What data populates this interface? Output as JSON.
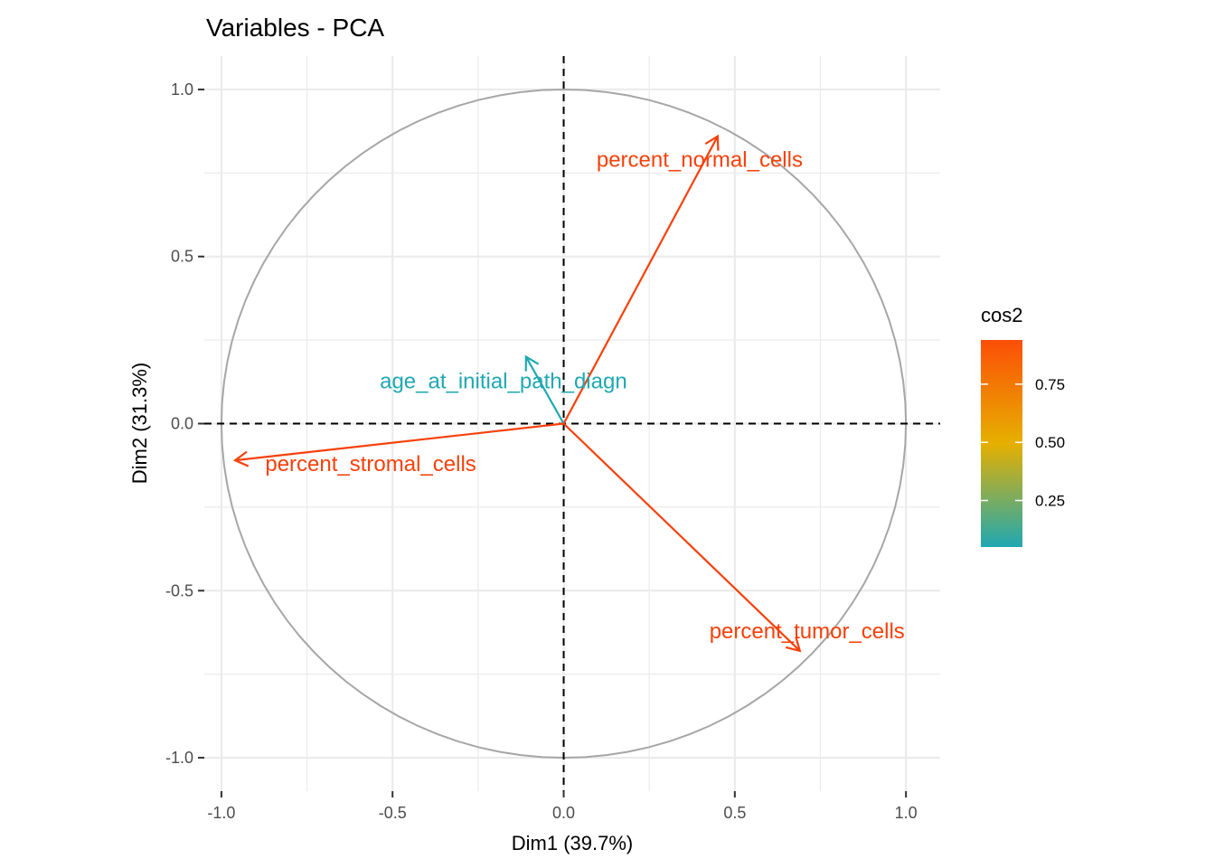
{
  "chart_data": {
    "type": "scatter",
    "subtype": "pca-variable-correlation-circle",
    "title": "Variables - PCA",
    "xlabel": "Dim1 (39.7%)",
    "ylabel": "Dim2 (31.3%)",
    "xlim": [
      -1.05,
      1.1
    ],
    "ylim": [
      -1.1,
      1.1
    ],
    "x_ticks": [
      -1.0,
      -0.5,
      0.0,
      0.5,
      1.0
    ],
    "x_tick_labels": [
      "-1.0",
      "-0.5",
      "0.0",
      "0.5",
      "1.0"
    ],
    "y_ticks": [
      -1.0,
      -0.5,
      0.0,
      0.5,
      1.0
    ],
    "y_tick_labels": [
      "-1.0",
      "-0.5",
      "0.0",
      "0.5",
      "1.0"
    ],
    "grid": true,
    "unit_circle": true,
    "reference_lines": [
      {
        "axis": "x",
        "value": 0
      },
      {
        "axis": "y",
        "value": 0
      }
    ],
    "variables": [
      {
        "name": "percent_normal_cells",
        "x": 0.45,
        "y": 0.86,
        "cos2": 0.94,
        "color": "#F8400A"
      },
      {
        "name": "age_at_initial_path_diagn",
        "x": -0.11,
        "y": 0.2,
        "cos2": 0.05,
        "color": "#1FA8B2"
      },
      {
        "name": "percent_stromal_cells",
        "x": -0.96,
        "y": -0.11,
        "cos2": 0.93,
        "color": "#F8400A"
      },
      {
        "name": "percent_tumor_cells",
        "x": 0.69,
        "y": -0.68,
        "cos2": 0.94,
        "color": "#F8400A"
      }
    ],
    "legend": {
      "title": "cos2",
      "placement": "right",
      "ticks": [
        0.25,
        0.5,
        0.75
      ],
      "tick_labels": [
        "0.25",
        "0.50",
        "0.75"
      ],
      "range": [
        0.05,
        0.94
      ],
      "gradient": [
        "#1FA8B2",
        "#E6B000",
        "#FC4E07"
      ]
    },
    "colors": {
      "grid": "#ebebeb",
      "circle": "#a6a6a6",
      "reference_line": "#000000"
    }
  }
}
